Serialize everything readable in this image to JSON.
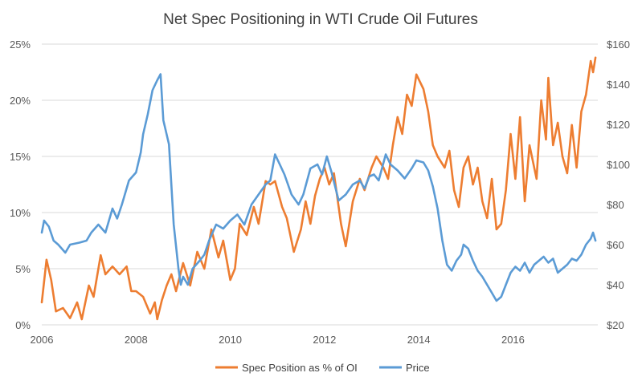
{
  "chart_data": {
    "type": "line",
    "title": "Net Spec Positioning in WTI Crude Oil Futures",
    "x_ticks": [
      "2006",
      "2008",
      "2010",
      "2012",
      "2014",
      "2016"
    ],
    "y_left": {
      "ticks": [
        "0%",
        "5%",
        "10%",
        "15%",
        "20%",
        "25%"
      ],
      "range": [
        0,
        25
      ],
      "unit": "%"
    },
    "y_right": {
      "ticks": [
        "$20",
        "$40",
        "$60",
        "$80",
        "$100",
        "$120",
        "$140",
        "$160"
      ],
      "range": [
        20,
        160
      ],
      "unit": "$"
    },
    "grid": "horizontal",
    "legend_position": "bottom",
    "series": [
      {
        "name": "Spec Position as % of OI",
        "axis": "left",
        "color": "#ED7D31",
        "points": [
          [
            2006.0,
            2.0
          ],
          [
            2006.1,
            5.8
          ],
          [
            2006.2,
            4.0
          ],
          [
            2006.3,
            1.2
          ],
          [
            2006.45,
            1.5
          ],
          [
            2006.6,
            0.6
          ],
          [
            2006.75,
            2.0
          ],
          [
            2006.85,
            0.5
          ],
          [
            2007.0,
            3.5
          ],
          [
            2007.1,
            2.5
          ],
          [
            2007.25,
            6.2
          ],
          [
            2007.35,
            4.5
          ],
          [
            2007.5,
            5.2
          ],
          [
            2007.65,
            4.5
          ],
          [
            2007.8,
            5.2
          ],
          [
            2007.9,
            3.0
          ],
          [
            2008.0,
            3.0
          ],
          [
            2008.15,
            2.5
          ],
          [
            2008.3,
            1.0
          ],
          [
            2008.4,
            2.0
          ],
          [
            2008.45,
            0.5
          ],
          [
            2008.55,
            2.2
          ],
          [
            2008.65,
            3.5
          ],
          [
            2008.75,
            4.5
          ],
          [
            2008.85,
            3.0
          ],
          [
            2009.0,
            5.5
          ],
          [
            2009.15,
            3.5
          ],
          [
            2009.3,
            6.5
          ],
          [
            2009.45,
            5.0
          ],
          [
            2009.6,
            8.5
          ],
          [
            2009.75,
            6.0
          ],
          [
            2009.85,
            7.5
          ],
          [
            2010.0,
            4.0
          ],
          [
            2010.1,
            5.0
          ],
          [
            2010.2,
            9.0
          ],
          [
            2010.35,
            8.0
          ],
          [
            2010.5,
            10.5
          ],
          [
            2010.6,
            9.0
          ],
          [
            2010.75,
            12.8
          ],
          [
            2010.85,
            12.5
          ],
          [
            2010.95,
            12.8
          ],
          [
            2011.1,
            10.5
          ],
          [
            2011.2,
            9.5
          ],
          [
            2011.35,
            6.5
          ],
          [
            2011.5,
            8.5
          ],
          [
            2011.6,
            11.0
          ],
          [
            2011.7,
            9.0
          ],
          [
            2011.8,
            11.5
          ],
          [
            2011.9,
            13.0
          ],
          [
            2012.0,
            14.0
          ],
          [
            2012.1,
            12.5
          ],
          [
            2012.2,
            13.5
          ],
          [
            2012.35,
            9.0
          ],
          [
            2012.45,
            7.0
          ],
          [
            2012.6,
            11.0
          ],
          [
            2012.75,
            13.0
          ],
          [
            2012.85,
            12.0
          ],
          [
            2013.0,
            14.0
          ],
          [
            2013.1,
            15.0
          ],
          [
            2013.25,
            14.0
          ],
          [
            2013.35,
            13.0
          ],
          [
            2013.45,
            16.0
          ],
          [
            2013.55,
            18.5
          ],
          [
            2013.65,
            17.0
          ],
          [
            2013.75,
            20.5
          ],
          [
            2013.85,
            19.5
          ],
          [
            2013.95,
            22.3
          ],
          [
            2014.1,
            21.0
          ],
          [
            2014.2,
            19.0
          ],
          [
            2014.3,
            16.0
          ],
          [
            2014.4,
            15.0
          ],
          [
            2014.55,
            14.0
          ],
          [
            2014.65,
            15.5
          ],
          [
            2014.75,
            12.0
          ],
          [
            2014.85,
            10.5
          ],
          [
            2014.95,
            14.0
          ],
          [
            2015.05,
            15.0
          ],
          [
            2015.15,
            12.5
          ],
          [
            2015.25,
            14.0
          ],
          [
            2015.35,
            11.0
          ],
          [
            2015.45,
            9.5
          ],
          [
            2015.55,
            13.0
          ],
          [
            2015.65,
            8.5
          ],
          [
            2015.75,
            9.0
          ],
          [
            2015.85,
            12.0
          ],
          [
            2015.95,
            17.0
          ],
          [
            2016.05,
            13.0
          ],
          [
            2016.15,
            18.5
          ],
          [
            2016.25,
            11.0
          ],
          [
            2016.35,
            16.0
          ],
          [
            2016.5,
            13.0
          ],
          [
            2016.6,
            20.0
          ],
          [
            2016.7,
            16.5
          ],
          [
            2016.75,
            22.0
          ],
          [
            2016.85,
            16.0
          ],
          [
            2016.95,
            18.0
          ],
          [
            2017.05,
            15.0
          ],
          [
            2017.15,
            13.5
          ],
          [
            2017.25,
            17.8
          ],
          [
            2017.35,
            14.0
          ],
          [
            2017.45,
            19.0
          ],
          [
            2017.55,
            20.5
          ],
          [
            2017.65,
            23.5
          ],
          [
            2017.7,
            22.5
          ],
          [
            2017.75,
            23.8
          ]
        ]
      },
      {
        "name": "Price",
        "axis": "right",
        "color": "#5B9BD5",
        "points": [
          [
            2006.0,
            66.0
          ],
          [
            2006.05,
            72.0
          ],
          [
            2006.15,
            69.0
          ],
          [
            2006.25,
            62.0
          ],
          [
            2006.35,
            60.0
          ],
          [
            2006.5,
            56.0
          ],
          [
            2006.6,
            60.0
          ],
          [
            2006.8,
            61.0
          ],
          [
            2006.95,
            62.0
          ],
          [
            2007.05,
            66.0
          ],
          [
            2007.2,
            70.0
          ],
          [
            2007.35,
            66.0
          ],
          [
            2007.5,
            78.0
          ],
          [
            2007.6,
            73.0
          ],
          [
            2007.7,
            80.0
          ],
          [
            2007.85,
            92.0
          ],
          [
            2008.0,
            96.0
          ],
          [
            2008.1,
            106.0
          ],
          [
            2008.15,
            115.0
          ],
          [
            2008.25,
            125.0
          ],
          [
            2008.35,
            137.0
          ],
          [
            2008.45,
            142.0
          ],
          [
            2008.52,
            145.0
          ],
          [
            2008.58,
            122.0
          ],
          [
            2008.7,
            110.0
          ],
          [
            2008.8,
            70.0
          ],
          [
            2008.9,
            48.0
          ],
          [
            2008.95,
            40.0
          ],
          [
            2009.0,
            44.0
          ],
          [
            2009.1,
            40.0
          ],
          [
            2009.2,
            48.0
          ],
          [
            2009.35,
            52.0
          ],
          [
            2009.45,
            55.0
          ],
          [
            2009.55,
            62.0
          ],
          [
            2009.7,
            70.0
          ],
          [
            2009.85,
            68.0
          ],
          [
            2010.0,
            72.0
          ],
          [
            2010.15,
            75.0
          ],
          [
            2010.3,
            70.0
          ],
          [
            2010.45,
            80.0
          ],
          [
            2010.6,
            85.0
          ],
          [
            2010.75,
            90.0
          ],
          [
            2010.85,
            92.0
          ],
          [
            2010.95,
            105.0
          ],
          [
            2011.05,
            100.0
          ],
          [
            2011.15,
            95.0
          ],
          [
            2011.3,
            85.0
          ],
          [
            2011.45,
            80.0
          ],
          [
            2011.55,
            85.0
          ],
          [
            2011.7,
            98.0
          ],
          [
            2011.85,
            100.0
          ],
          [
            2011.95,
            95.0
          ],
          [
            2012.05,
            104.0
          ],
          [
            2012.15,
            96.0
          ],
          [
            2012.3,
            82.0
          ],
          [
            2012.45,
            85.0
          ],
          [
            2012.6,
            90.0
          ],
          [
            2012.75,
            92.0
          ],
          [
            2012.85,
            88.0
          ],
          [
            2012.95,
            94.0
          ],
          [
            2013.05,
            95.0
          ],
          [
            2013.15,
            92.0
          ],
          [
            2013.3,
            105.0
          ],
          [
            2013.4,
            100.0
          ],
          [
            2013.55,
            97.0
          ],
          [
            2013.7,
            93.0
          ],
          [
            2013.85,
            98.0
          ],
          [
            2013.95,
            102.0
          ],
          [
            2014.1,
            101.0
          ],
          [
            2014.2,
            97.0
          ],
          [
            2014.3,
            89.0
          ],
          [
            2014.4,
            78.0
          ],
          [
            2014.5,
            62.0
          ],
          [
            2014.6,
            50.0
          ],
          [
            2014.7,
            47.0
          ],
          [
            2014.8,
            52.0
          ],
          [
            2014.9,
            55.0
          ],
          [
            2014.95,
            60.0
          ],
          [
            2015.05,
            58.0
          ],
          [
            2015.15,
            52.0
          ],
          [
            2015.25,
            47.0
          ],
          [
            2015.35,
            44.0
          ],
          [
            2015.45,
            40.0
          ],
          [
            2015.55,
            36.0
          ],
          [
            2015.65,
            32.0
          ],
          [
            2015.75,
            34.0
          ],
          [
            2015.85,
            40.0
          ],
          [
            2015.95,
            46.0
          ],
          [
            2016.05,
            49.0
          ],
          [
            2016.15,
            47.0
          ],
          [
            2016.25,
            51.0
          ],
          [
            2016.35,
            46.0
          ],
          [
            2016.45,
            50.0
          ],
          [
            2016.55,
            52.0
          ],
          [
            2016.65,
            54.0
          ],
          [
            2016.75,
            51.0
          ],
          [
            2016.85,
            53.0
          ],
          [
            2016.95,
            46.0
          ],
          [
            2017.05,
            48.0
          ],
          [
            2017.15,
            50.0
          ],
          [
            2017.25,
            53.0
          ],
          [
            2017.35,
            52.0
          ],
          [
            2017.45,
            55.0
          ],
          [
            2017.55,
            60.0
          ],
          [
            2017.65,
            63.0
          ],
          [
            2017.7,
            66.0
          ],
          [
            2017.75,
            62.0
          ]
        ]
      }
    ]
  }
}
